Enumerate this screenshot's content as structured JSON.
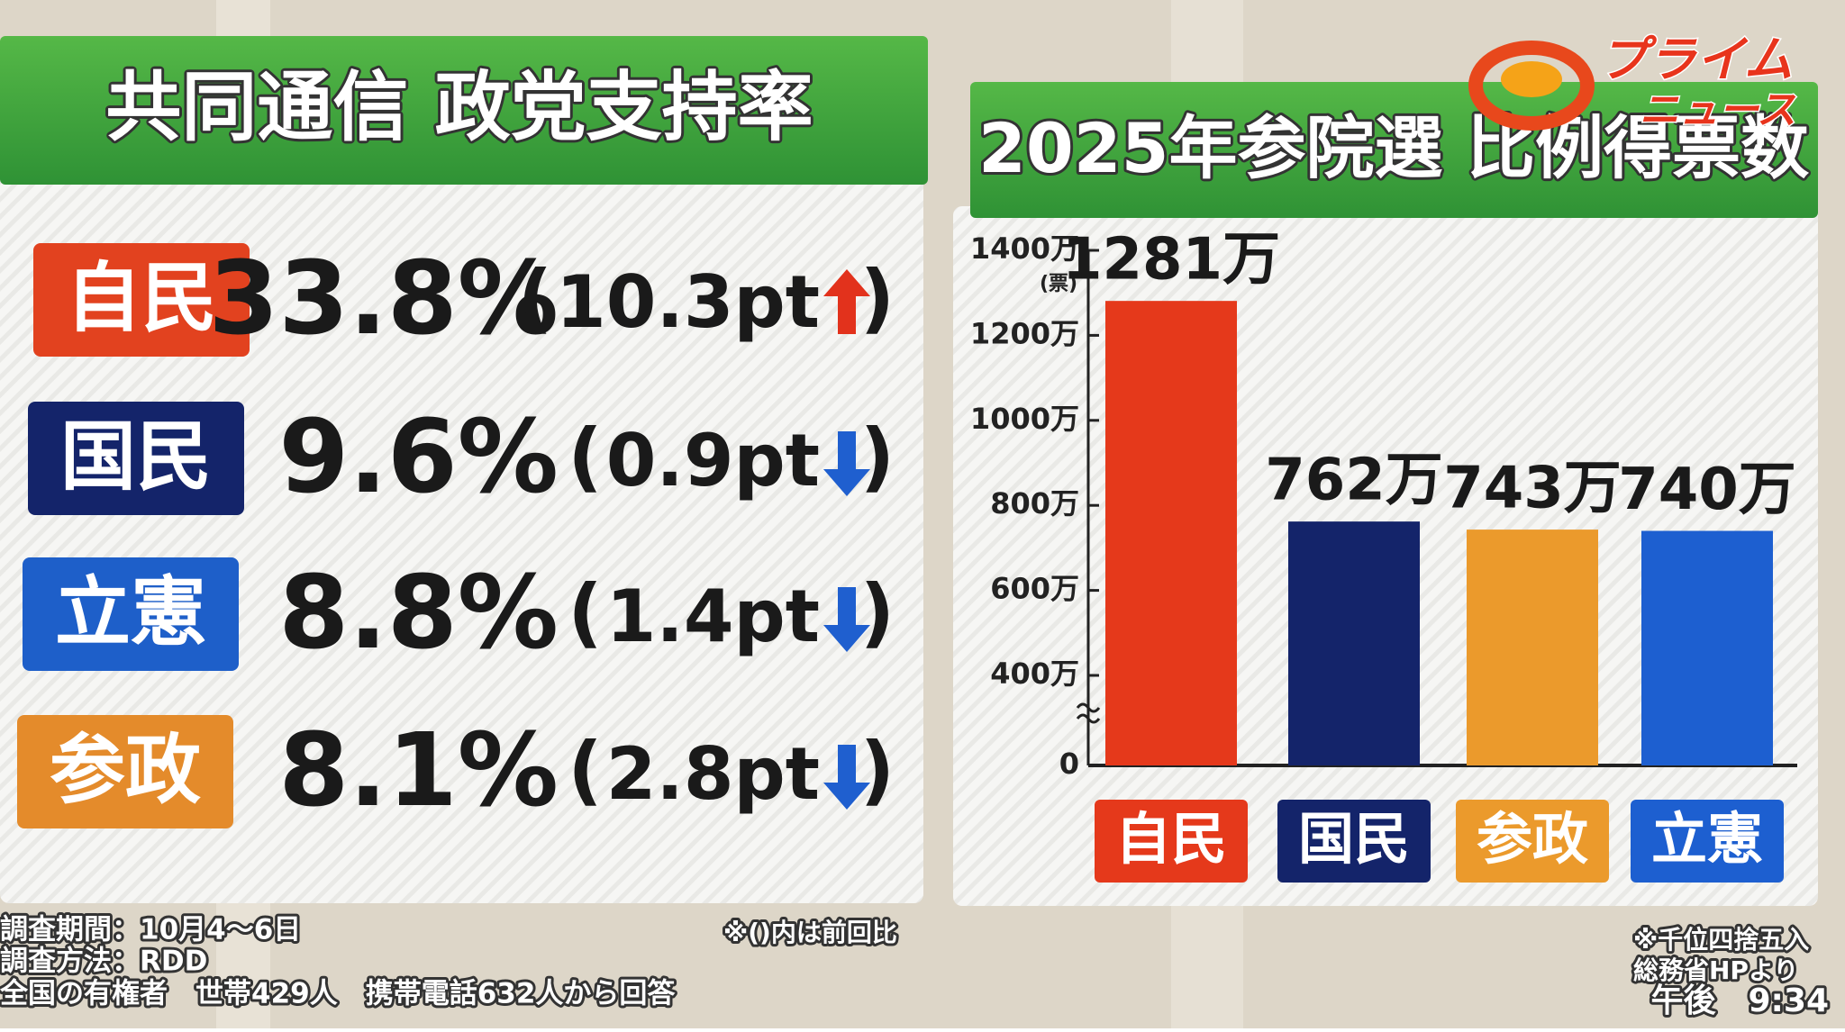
{
  "support": {
    "title": "共同通信 政党支持率",
    "paren_open": "(",
    "paren_close": ")",
    "rows": [
      {
        "party": "自民",
        "color": "#e2421f",
        "rate": "33.8%",
        "change": "10.3pt",
        "direction": "up"
      },
      {
        "party": "国民",
        "color": "#14246a",
        "rate": "9.6%",
        "change": "0.9pt",
        "direction": "down"
      },
      {
        "party": "立憲",
        "color": "#1e5fc9",
        "rate": "8.8%",
        "change": "1.4pt",
        "direction": "down"
      },
      {
        "party": "参政",
        "color": "#e48b2b",
        "rate": "8.1%",
        "change": "2.8pt",
        "direction": "down"
      }
    ]
  },
  "chart_data": {
    "type": "bar",
    "title": "2025年参院選 比例得票数",
    "categories": [
      "自民",
      "国民",
      "参政",
      "立憲"
    ],
    "values": [
      1281,
      762,
      743,
      740
    ],
    "value_labels": [
      "1281万",
      "762万",
      "743万",
      "740万"
    ],
    "colors": [
      "#e5391b",
      "#14246a",
      "#eb9a2c",
      "#1d5fd0"
    ],
    "ylim": [
      0,
      1400
    ],
    "axis_break": [
      0,
      400
    ],
    "y_unit": "(票)",
    "yticks": [
      0,
      {
        "value": 400,
        "label": "400万"
      },
      {
        "value": 600,
        "label": "600万"
      },
      {
        "value": 800,
        "label": "800万"
      },
      {
        "value": 1000,
        "label": "1000万"
      },
      {
        "value": 1200,
        "label": "1200万"
      },
      {
        "value": 1400,
        "label": "1400万"
      }
    ]
  },
  "notes": {
    "survey": [
      "調査期間：10月4〜6日",
      "調査方法：RDD",
      "全国の有権者　世帯429人　携帯電話632人から回答"
    ],
    "paren_note": "※()内は前回比",
    "source": [
      "※千位四捨五入",
      "総務省HPより"
    ]
  },
  "logo": [
    "プライム",
    "ニュース"
  ],
  "clock": "午後　9:34"
}
